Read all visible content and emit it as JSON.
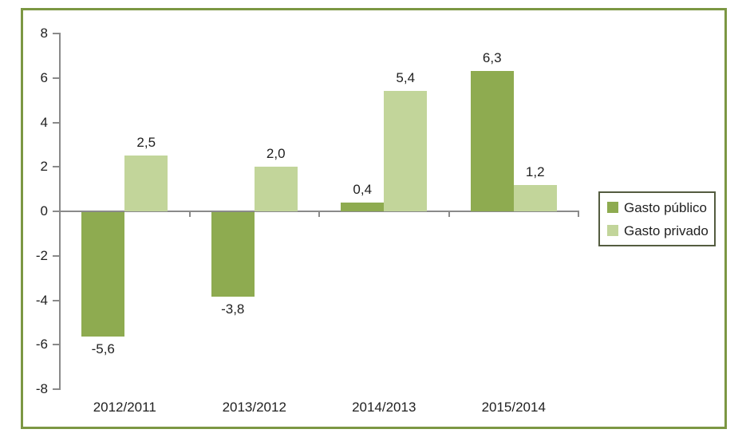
{
  "chart_data": {
    "type": "bar",
    "categories": [
      "2012/2011",
      "2013/2012",
      "2014/2013",
      "2015/2014"
    ],
    "series": [
      {
        "name": "Gasto público",
        "color": "#8EAB50",
        "values": [
          -5.6,
          -3.8,
          0.4,
          6.3
        ],
        "labels": [
          "-5,6",
          "-3,8",
          "0,4",
          "6,3"
        ]
      },
      {
        "name": "Gasto privado",
        "color": "#C2D59A",
        "values": [
          2.5,
          2.0,
          5.4,
          1.2
        ],
        "labels": [
          "2,5",
          "2,0",
          "5,4",
          "1,2"
        ]
      }
    ],
    "title": "",
    "xlabel": "",
    "ylabel": "",
    "ylim": [
      -8,
      8
    ],
    "ytick_step": 2,
    "ytick_labels": [
      "8",
      "6",
      "4",
      "2",
      "0",
      "-2",
      "-4",
      "-6",
      "-8"
    ],
    "grid": false,
    "legend_position": "right",
    "decimal_separator": ","
  },
  "colors": {
    "background": "#FFFFFF",
    "frame_border": "#7C9743",
    "axis": "#8A8A8A",
    "legend_border": "#545C40",
    "text": "#1F1F1F"
  }
}
